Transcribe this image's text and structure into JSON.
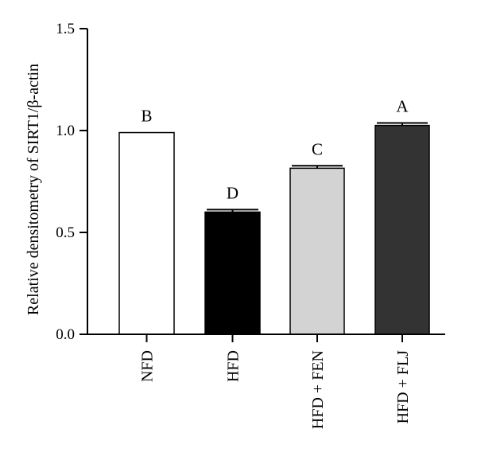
{
  "chart_data": {
    "type": "bar",
    "categories": [
      "NFD",
      "HFD",
      "HFD + FEN",
      "HFD + FLJ"
    ],
    "values": [
      0.99,
      0.6,
      0.815,
      1.025
    ],
    "errors": [
      0.0,
      0.012,
      0.012,
      0.012
    ],
    "significance": [
      "B",
      "D",
      "C",
      "A"
    ],
    "bar_colors": [
      "#ffffff",
      "#000000",
      "#d3d3d3",
      "#333333"
    ],
    "title": "",
    "xlabel": "",
    "ylabel": "Relative densitometry of SIRT1/β-actin",
    "ylim": [
      0,
      1.5
    ],
    "yticks": [
      "0.0",
      "0.5",
      "1.0",
      "1.5"
    ],
    "ytick_values": [
      0,
      0.5,
      1.0,
      1.5
    ],
    "grid": false,
    "legend": "none"
  }
}
